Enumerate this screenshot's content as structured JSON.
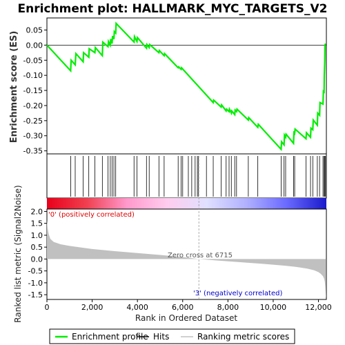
{
  "chart_data": {
    "type": "line",
    "title": "Enrichment plot: HALLMARK_MYC_TARGETS_V2",
    "es_panel": {
      "ylabel": "Enrichment score (ES)",
      "ylim": [
        -0.36,
        0.09
      ],
      "yticks": [
        "0.05",
        "0.00",
        "-0.05",
        "-0.10",
        "-0.15",
        "-0.20",
        "-0.25",
        "-0.30",
        "-0.35"
      ],
      "ytick_values": [
        0.05,
        0.0,
        -0.05,
        -0.1,
        -0.15,
        -0.2,
        -0.25,
        -0.3,
        -0.35
      ],
      "series": [
        {
          "name": "Enrichment profile",
          "color": "#00ee00",
          "x": [
            0,
            1050,
            1070,
            1250,
            1280,
            1600,
            1620,
            1850,
            1870,
            2120,
            2140,
            2450,
            2470,
            2700,
            2720,
            2800,
            2820,
            2880,
            2900,
            2960,
            2980,
            3040,
            3060,
            3850,
            3870,
            3980,
            4000,
            4400,
            4420,
            4520,
            4540,
            4950,
            4970,
            5180,
            5200,
            5800,
            5820,
            5930,
            5950,
            7350,
            7370,
            7700,
            7720,
            7920,
            7940,
            8050,
            8070,
            8150,
            8170,
            8300,
            8320,
            8380,
            8400,
            8900,
            8920,
            9320,
            9340,
            10350,
            10370,
            10480,
            10500,
            10550,
            10570,
            10900,
            10920,
            10950,
            10970,
            11450,
            11470,
            11650,
            11670,
            11750,
            11770,
            11950,
            11970,
            12050,
            12070,
            12200,
            12220,
            12250,
            12260,
            12280,
            12290,
            12310
          ],
          "y": [
            0.0,
            -0.085,
            -0.05,
            -0.065,
            -0.028,
            -0.055,
            -0.025,
            -0.04,
            -0.012,
            -0.025,
            -0.008,
            -0.035,
            0.01,
            -0.005,
            0.012,
            0.0,
            0.02,
            0.005,
            0.03,
            0.02,
            0.045,
            0.04,
            0.072,
            0.01,
            0.028,
            0.012,
            0.025,
            -0.01,
            0.002,
            -0.008,
            0.002,
            -0.025,
            -0.018,
            -0.035,
            -0.028,
            -0.075,
            -0.072,
            -0.08,
            -0.075,
            -0.19,
            -0.182,
            -0.205,
            -0.198,
            -0.218,
            -0.212,
            -0.22,
            -0.212,
            -0.225,
            -0.218,
            -0.23,
            -0.215,
            -0.22,
            -0.212,
            -0.248,
            -0.24,
            -0.272,
            -0.262,
            -0.345,
            -0.32,
            -0.33,
            -0.298,
            -0.305,
            -0.295,
            -0.325,
            -0.285,
            -0.29,
            -0.278,
            -0.31,
            -0.29,
            -0.305,
            -0.275,
            -0.28,
            -0.248,
            -0.265,
            -0.225,
            -0.232,
            -0.19,
            -0.195,
            -0.153,
            -0.155,
            -0.1,
            -0.05,
            0.0,
            0.005
          ]
        }
      ]
    },
    "hits_panel": {
      "positions": [
        1050,
        1250,
        1600,
        1850,
        2120,
        2450,
        2700,
        2800,
        2880,
        2960,
        3040,
        3850,
        3980,
        4400,
        4520,
        4950,
        5180,
        5800,
        5930,
        6000,
        6250,
        6400,
        6550,
        6650,
        6700,
        7050,
        7350,
        7700,
        7920,
        8050,
        8150,
        8300,
        8380,
        8900,
        9320,
        10350,
        10480,
        10550,
        10900,
        10950,
        11450,
        11650,
        11750,
        11950,
        12050,
        12200,
        12250,
        12280,
        12310
      ]
    },
    "gradient_bar": {
      "colors": [
        "#e8001a",
        "#f04050",
        "#ff99cc",
        "#ffccee",
        "#e0e0ff",
        "#b0b0ff",
        "#6a6aff",
        "#1a1acc"
      ]
    },
    "metric_panel": {
      "ylabel": "Ranked list metric (Signal2Noise)",
      "xlabel": "Rank in Ordered Dataset",
      "ylim": [
        -1.7,
        2.1
      ],
      "yticks": [
        "2.0",
        "1.5",
        "1.0",
        "0.5",
        "0.0",
        "-0.5",
        "-1.0",
        "-1.5"
      ],
      "ytick_values": [
        2.0,
        1.5,
        1.0,
        0.5,
        0.0,
        -0.5,
        -1.0,
        -1.5
      ],
      "xlim": [
        0,
        12350
      ],
      "xticks": [
        "0",
        "2,000",
        "4,000",
        "6,000",
        "8,000",
        "10,000",
        "12,000"
      ],
      "xtick_values": [
        0,
        2000,
        4000,
        6000,
        8000,
        10000,
        12000
      ],
      "x": [
        0,
        30,
        80,
        150,
        300,
        600,
        1000,
        2000,
        3000,
        4000,
        5000,
        6000,
        6715,
        7500,
        8500,
        9500,
        10500,
        11000,
        11500,
        11800,
        12000,
        12100,
        12200,
        12250,
        12280,
        12300,
        12320,
        12340
      ],
      "y": [
        1.62,
        1.3,
        1.05,
        0.85,
        0.72,
        0.62,
        0.55,
        0.42,
        0.33,
        0.25,
        0.17,
        0.08,
        0.0,
        -0.06,
        -0.13,
        -0.2,
        -0.28,
        -0.33,
        -0.4,
        -0.47,
        -0.55,
        -0.62,
        -0.72,
        -0.82,
        -0.95,
        -1.15,
        -1.4,
        -1.62
      ],
      "fill_color": "#c0c0c0",
      "zero_cross_label": "Zero cross at 6715",
      "zero_cross": 6715,
      "pos_label": "'0' (positively correlated)",
      "pos_color": "#e00000",
      "neg_label": "'3' (negatively correlated)",
      "neg_color": "#0000cc"
    },
    "legend": {
      "placement": "bottom",
      "items": [
        {
          "label": "Enrichment profile",
          "color": "#00ee00",
          "kind": "line"
        },
        {
          "label": "Hits",
          "color": "#000000",
          "kind": "line"
        },
        {
          "label": "Ranking metric scores",
          "color": "#c0c0c0",
          "kind": "line"
        }
      ]
    }
  }
}
